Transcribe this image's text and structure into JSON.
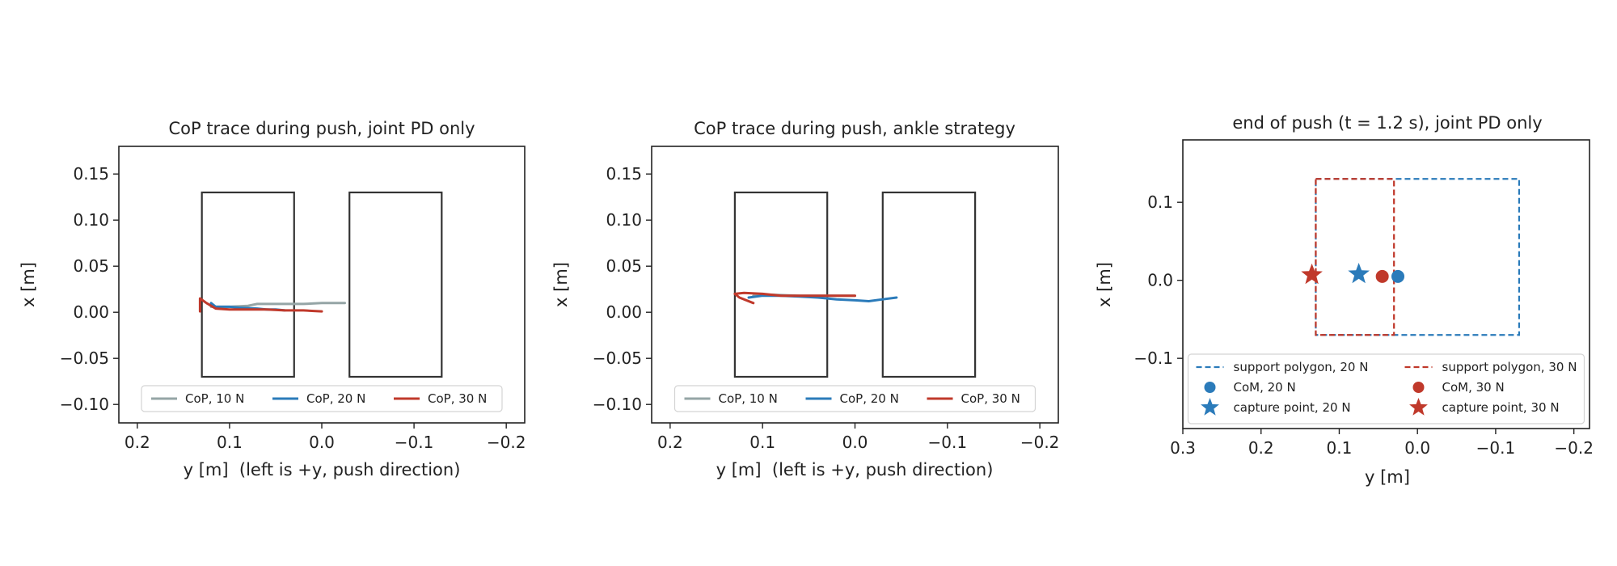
{
  "colors": {
    "cop_10": "#95a5a6",
    "blue": "#2b7bba",
    "red": "#c0392b",
    "foot": "#333333"
  },
  "chart_data": [
    {
      "type": "line",
      "title": "CoP trace during push, joint PD only",
      "xlabel": "y [m]  (left is +y, push direction)",
      "ylabel": "x [m]",
      "xlim": [
        0.22,
        -0.22
      ],
      "ylim": [
        -0.12,
        0.18
      ],
      "x_inverted": true,
      "xticks": [
        0.2,
        0.1,
        0.0,
        -0.1,
        -0.2
      ],
      "xtick_labels": [
        "0.2",
        "0.1",
        "0.0",
        "−0.1",
        "−0.2"
      ],
      "yticks": [
        0.15,
        0.1,
        0.05,
        0.0,
        -0.05,
        -0.1
      ],
      "ytick_labels": [
        "0.15",
        "0.10",
        "0.05",
        "0.00",
        "−0.05",
        "−0.10"
      ],
      "grid": false,
      "legend": "lower-center",
      "legend_ncol": 3,
      "feet": [
        {
          "y_left": 0.13,
          "y_right": 0.03,
          "x_bottom": -0.07,
          "x_top": 0.13
        },
        {
          "y_left": -0.03,
          "y_right": -0.13,
          "x_bottom": -0.07,
          "x_top": 0.13
        }
      ],
      "series": [
        {
          "name": "CoP, 10 N",
          "color_key": "cop_10",
          "points": [
            [
              0.12,
              0.006
            ],
            [
              0.1,
              0.006
            ],
            [
              0.08,
              0.007
            ],
            [
              0.07,
              0.009
            ],
            [
              0.05,
              0.009
            ],
            [
              0.02,
              0.009
            ],
            [
              0.0,
              0.01
            ],
            [
              -0.025,
              0.01
            ]
          ]
        },
        {
          "name": "CoP, 20 N",
          "color_key": "blue",
          "points": [
            [
              0.12,
              0.01
            ],
            [
              0.115,
              0.006
            ],
            [
              0.1,
              0.006
            ],
            [
              0.09,
              0.005
            ],
            [
              0.07,
              0.004
            ],
            [
              0.06,
              0.003
            ],
            [
              0.05,
              0.003
            ],
            [
              0.04,
              0.002
            ]
          ]
        },
        {
          "name": "CoP, 30 N",
          "color_key": "red",
          "points": [
            [
              0.132,
              0.001
            ],
            [
              0.132,
              0.015
            ],
            [
              0.125,
              0.01
            ],
            [
              0.115,
              0.004
            ],
            [
              0.1,
              0.003
            ],
            [
              0.08,
              0.003
            ],
            [
              0.06,
              0.003
            ],
            [
              0.04,
              0.002
            ],
            [
              0.02,
              0.002
            ],
            [
              0.0,
              0.001
            ]
          ]
        }
      ]
    },
    {
      "type": "line",
      "title": "CoP trace during push, ankle strategy",
      "xlabel": "y [m]  (left is +y, push direction)",
      "ylabel": "x [m]",
      "xlim": [
        0.22,
        -0.22
      ],
      "ylim": [
        -0.12,
        0.18
      ],
      "x_inverted": true,
      "xticks": [
        0.2,
        0.1,
        0.0,
        -0.1,
        -0.2
      ],
      "xtick_labels": [
        "0.2",
        "0.1",
        "0.0",
        "−0.1",
        "−0.2"
      ],
      "yticks": [
        0.15,
        0.1,
        0.05,
        0.0,
        -0.05,
        -0.1
      ],
      "ytick_labels": [
        "0.15",
        "0.10",
        "0.05",
        "0.00",
        "−0.05",
        "−0.10"
      ],
      "grid": false,
      "legend": "lower-center",
      "legend_ncol": 3,
      "feet": [
        {
          "y_left": 0.13,
          "y_right": 0.03,
          "x_bottom": -0.07,
          "x_top": 0.13
        },
        {
          "y_left": -0.03,
          "y_right": -0.13,
          "x_bottom": -0.07,
          "x_top": 0.13
        }
      ],
      "series": [
        {
          "name": "CoP, 10 N",
          "color_key": "cop_10",
          "points": [
            [
              0.11,
              0.018
            ],
            [
              0.09,
              0.019
            ],
            [
              0.06,
              0.018
            ],
            [
              0.03,
              0.018
            ],
            [
              0.0,
              0.018
            ]
          ]
        },
        {
          "name": "CoP, 20 N",
          "color_key": "blue",
          "points": [
            [
              0.115,
              0.016
            ],
            [
              0.1,
              0.018
            ],
            [
              0.08,
              0.018
            ],
            [
              0.06,
              0.017
            ],
            [
              0.04,
              0.016
            ],
            [
              0.02,
              0.014
            ],
            [
              0.0,
              0.013
            ],
            [
              -0.015,
              0.012
            ],
            [
              -0.03,
              0.014
            ],
            [
              -0.045,
              0.016
            ]
          ]
        },
        {
          "name": "CoP, 30 N",
          "color_key": "red",
          "points": [
            [
              0.11,
              0.01
            ],
            [
              0.125,
              0.016
            ],
            [
              0.13,
              0.02
            ],
            [
              0.12,
              0.021
            ],
            [
              0.1,
              0.02
            ],
            [
              0.08,
              0.018
            ],
            [
              0.06,
              0.018
            ],
            [
              0.04,
              0.018
            ],
            [
              0.02,
              0.018
            ],
            [
              0.0,
              0.018
            ]
          ]
        }
      ]
    },
    {
      "type": "scatter",
      "title": "end of push (t = 1.2 s), joint PD only",
      "xlabel": "y [m]",
      "ylabel": "x [m]",
      "xlim": [
        0.3,
        -0.22
      ],
      "ylim": [
        -0.19,
        0.18
      ],
      "x_inverted": true,
      "xticks": [
        0.3,
        0.2,
        0.1,
        0.0,
        -0.1,
        -0.2
      ],
      "xtick_labels": [
        "0.3",
        "0.2",
        "0.1",
        "0.0",
        "−0.1",
        "−0.2"
      ],
      "yticks": [
        0.1,
        0.0,
        -0.1
      ],
      "ytick_labels": [
        "0.1",
        "0.0",
        "−0.1"
      ],
      "grid": false,
      "legend": "lower-center",
      "legend_ncol": 2,
      "polygons": [
        {
          "name": "support polygon, 20 N",
          "color_key": "blue",
          "y_left": 0.13,
          "y_right": -0.13,
          "x_bottom": -0.07,
          "x_top": 0.13
        },
        {
          "name": "support polygon, 30 N",
          "color_key": "red",
          "y_left": 0.13,
          "y_right": 0.03,
          "x_bottom": -0.07,
          "x_top": 0.13
        }
      ],
      "markers": [
        {
          "name": "CoM, 20 N",
          "color_key": "blue",
          "shape": "circle",
          "y": 0.025,
          "x": 0.005
        },
        {
          "name": "CoM, 30 N",
          "color_key": "red",
          "shape": "circle",
          "y": 0.045,
          "x": 0.005
        },
        {
          "name": "capture point, 20 N",
          "color_key": "blue",
          "shape": "star",
          "y": 0.075,
          "x": 0.008
        },
        {
          "name": "capture point, 30 N",
          "color_key": "red",
          "shape": "star",
          "y": 0.135,
          "x": 0.007
        }
      ],
      "legend_entries": [
        {
          "label": "support polygon, 20 N",
          "color_key": "blue",
          "kind": "dash"
        },
        {
          "label": "support polygon, 30 N",
          "color_key": "red",
          "kind": "dash"
        },
        {
          "label": "CoM, 20 N",
          "color_key": "blue",
          "kind": "circle"
        },
        {
          "label": "CoM, 30 N",
          "color_key": "red",
          "kind": "circle"
        },
        {
          "label": "capture point, 20 N",
          "color_key": "blue",
          "kind": "star"
        },
        {
          "label": "capture point, 30 N",
          "color_key": "red",
          "kind": "star"
        }
      ]
    }
  ]
}
